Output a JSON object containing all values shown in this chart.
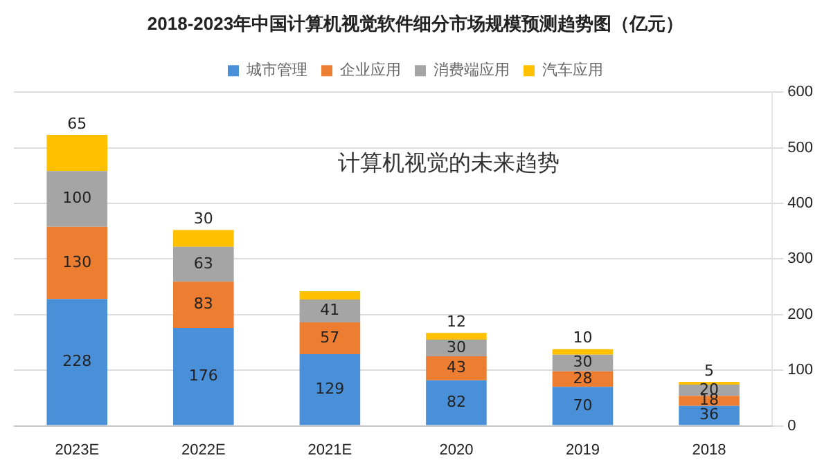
{
  "chart_data": {
    "type": "bar",
    "title": "2018-2023年中国计算机视觉软件细分市场规模预测趋势图（亿元）",
    "categories": [
      "2023E",
      "2022E",
      "2021E",
      "2020",
      "2019",
      "2018"
    ],
    "stacked": true,
    "series": [
      {
        "name": "城市管理",
        "color": "#4a90d9",
        "values": [
          228,
          176,
          129,
          82,
          70,
          36
        ],
        "value_labels": [
          "228",
          "176",
          "129",
          "82",
          "70",
          "36"
        ]
      },
      {
        "name": "企业应用",
        "color": "#ed7d31",
        "values": [
          130,
          83,
          57,
          43,
          28,
          18
        ],
        "value_labels": [
          "130",
          "83",
          "57",
          "43",
          "28",
          "18"
        ]
      },
      {
        "name": "消费端应用",
        "color": "#a5a5a5",
        "values": [
          100,
          63,
          41,
          30,
          30,
          20
        ],
        "value_labels": [
          "100",
          "63",
          "41",
          "30",
          "30",
          "20"
        ]
      },
      {
        "name": "汽车应用",
        "color": "#ffc000",
        "values": [
          65,
          30,
          15,
          12,
          10,
          5
        ],
        "value_labels": [
          "65",
          "30",
          null,
          "12",
          "10",
          "5"
        ]
      }
    ],
    "ylim": [
      0,
      600
    ],
    "yticks": [
      0,
      100,
      200,
      300,
      400,
      500,
      600
    ],
    "grid": "y",
    "legend": "top",
    "annotations": [
      "计算机视觉的未来趋势"
    ]
  }
}
